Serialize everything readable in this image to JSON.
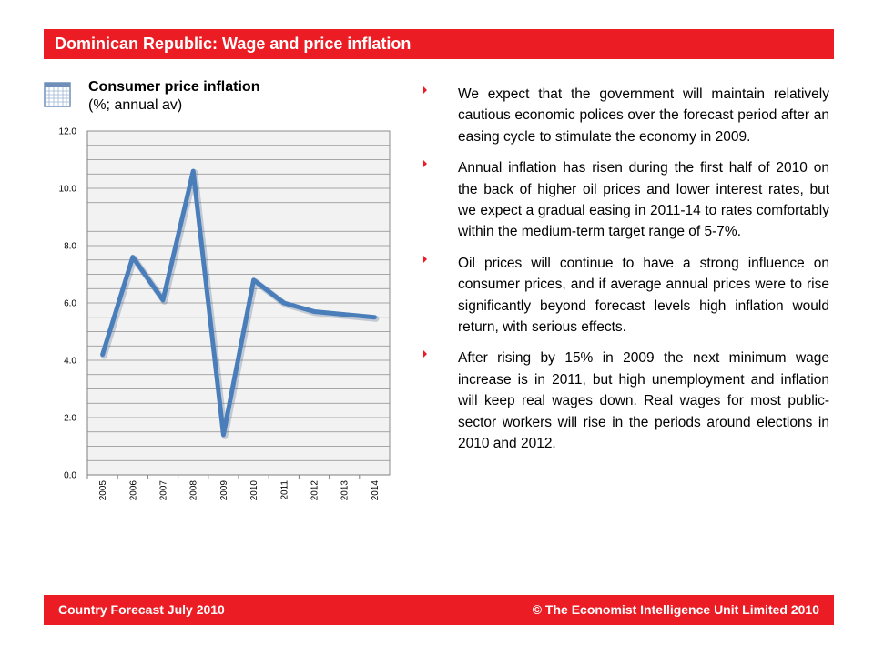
{
  "header": {
    "title": "Dominican Republic: Wage and price inflation"
  },
  "icon": {
    "name": "calendar-icon"
  },
  "chart_data": {
    "type": "line",
    "title": "Consumer price inflation",
    "subtitle": "(%; annual av)",
    "xlabel": "",
    "ylabel": "",
    "categories": [
      "2005",
      "2006",
      "2007",
      "2008",
      "2009",
      "2010",
      "2011",
      "2012",
      "2013",
      "2014"
    ],
    "values": [
      4.2,
      7.6,
      6.1,
      10.6,
      1.4,
      6.8,
      6.0,
      5.7,
      5.6,
      5.5
    ],
    "ylim": [
      0,
      12
    ],
    "yticks": [
      "0.0",
      "2.0",
      "4.0",
      "6.0",
      "8.0",
      "10.0",
      "12.0"
    ],
    "grid": true,
    "line_color": "#4a7ebb",
    "plot_background": "#f2f2f2",
    "grid_color": "#8c8c8c"
  },
  "bullets": [
    "We expect that the government will maintain relatively cautious economic polices over the forecast period after an easing cycle to stimulate the economy in 2009.",
    "Annual inflation has risen during the first half of 2010 on the back of higher oil prices and lower interest rates, but we expect a gradual easing in 2011-14 to rates comfortably within the medium-term target range of 5-7%.",
    "Oil prices will continue to have a strong influence on consumer prices, and if average annual prices were to rise significantly beyond forecast levels high inflation would return, with serious effects.",
    "After rising by 15% in 2009 the next minimum wage increase is in 2011, but high unemployment and inflation will keep real wages down. Real wages for most public-sector workers will rise in the periods around elections in 2010 and 2012."
  ],
  "footer": {
    "left": "Country Forecast July 2010",
    "right": "© The Economist Intelligence Unit Limited 2010"
  },
  "colors": {
    "accent": "#ec1c24",
    "bullet_marker": "#ec1c24"
  }
}
